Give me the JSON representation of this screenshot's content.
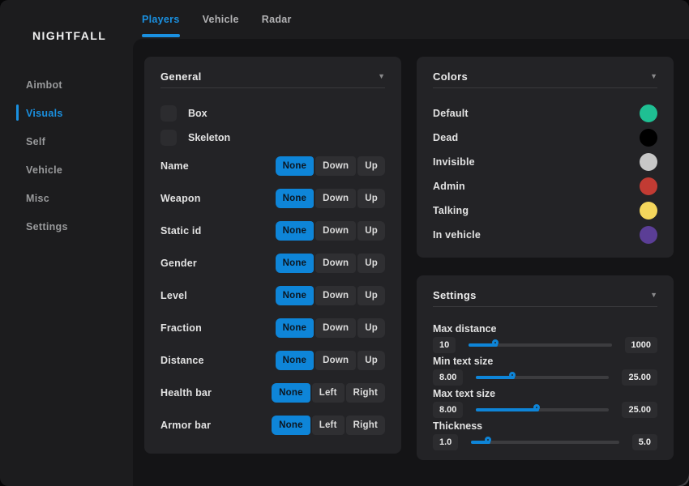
{
  "theme": {
    "accent_text": "#1a90e0",
    "accent_fill": "#0e85d8",
    "window_bg": "#1c1c1e",
    "content_bg": "#141416",
    "panel_bg": "#232326"
  },
  "icons": {
    "chevron_down": "▼"
  },
  "sidebar": {
    "title": "NIGHTFALL",
    "items": [
      {
        "label": "Aimbot",
        "active": false
      },
      {
        "label": "Visuals",
        "active": true
      },
      {
        "label": "Self",
        "active": false
      },
      {
        "label": "Vehicle",
        "active": false
      },
      {
        "label": "Misc",
        "active": false
      },
      {
        "label": "Settings",
        "active": false
      }
    ]
  },
  "tabs": [
    {
      "label": "Players",
      "active": true
    },
    {
      "label": "Vehicle",
      "active": false
    },
    {
      "label": "Radar",
      "active": false
    }
  ],
  "general_panel": {
    "title": "General",
    "checkboxes": [
      {
        "label": "Box",
        "checked": false
      },
      {
        "label": "Skeleton",
        "checked": false
      }
    ],
    "rows": [
      {
        "label": "Name",
        "options": [
          "None",
          "Down",
          "Up"
        ],
        "selected": "None"
      },
      {
        "label": "Weapon",
        "options": [
          "None",
          "Down",
          "Up"
        ],
        "selected": "None"
      },
      {
        "label": "Static id",
        "options": [
          "None",
          "Down",
          "Up"
        ],
        "selected": "None"
      },
      {
        "label": "Gender",
        "options": [
          "None",
          "Down",
          "Up"
        ],
        "selected": "None"
      },
      {
        "label": "Level",
        "options": [
          "None",
          "Down",
          "Up"
        ],
        "selected": "None"
      },
      {
        "label": "Fraction",
        "options": [
          "None",
          "Down",
          "Up"
        ],
        "selected": "None"
      },
      {
        "label": "Distance",
        "options": [
          "None",
          "Down",
          "Up"
        ],
        "selected": "None"
      },
      {
        "label": "Health bar",
        "options": [
          "None",
          "Left",
          "Right"
        ],
        "selected": "None"
      },
      {
        "label": "Armor bar",
        "options": [
          "None",
          "Left",
          "Right"
        ],
        "selected": "None"
      }
    ]
  },
  "colors_panel": {
    "title": "Colors",
    "items": [
      {
        "label": "Default",
        "color": "#1fbf93"
      },
      {
        "label": "Dead",
        "color": "#000000"
      },
      {
        "label": "Invisible",
        "color": "#c7c7c7"
      },
      {
        "label": "Admin",
        "color": "#c23b33"
      },
      {
        "label": "Talking",
        "color": "#f4d65c"
      },
      {
        "label": "In vehicle",
        "color": "#5b3e96"
      }
    ]
  },
  "settings_panel": {
    "title": "Settings",
    "sliders": [
      {
        "label": "Max distance",
        "left_value": "10",
        "right_value": "1000",
        "fraction": 0.2
      },
      {
        "label": "Min text size",
        "left_value": "8.00",
        "right_value": "25.00",
        "fraction": 0.29
      },
      {
        "label": "Max text size",
        "left_value": "8.00",
        "right_value": "25.00",
        "fraction": 0.47
      },
      {
        "label": "Thickness",
        "left_value": "1.0",
        "right_value": "5.0",
        "fraction": 0.13
      }
    ]
  }
}
